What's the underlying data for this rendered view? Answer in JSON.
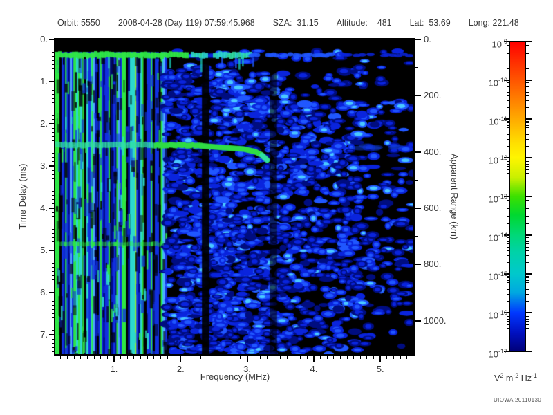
{
  "header": {
    "segments": [
      "Orbit: 5550",
      "2008-04-28 (Day 119) 07:59:45.968",
      "SZA:  31.15",
      "Altitude:    481",
      "Lat:  53.69",
      "Long: 221.48"
    ]
  },
  "watermark": "UIOWA 20110130",
  "chart_data": {
    "type": "heatmap",
    "subtype": "radar-sounder-ionogram-spectrogram",
    "x_axis": {
      "label": "Frequency (MHz)",
      "range_mhz": [
        0.117,
        5.5
      ],
      "major_ticks": [
        {
          "value": 1,
          "label": "1."
        },
        {
          "value": 2,
          "label": "2."
        },
        {
          "value": 3,
          "label": "3."
        },
        {
          "value": 4,
          "label": "4."
        },
        {
          "value": 5,
          "label": "5."
        }
      ],
      "minor_tick_step": 0.1
    },
    "y_axis": {
      "label": "Time Delay (ms)",
      "range_ms": [
        0,
        7.46
      ],
      "major_ticks": [
        {
          "value": 0,
          "label": "0."
        },
        {
          "value": 1,
          "label": "1."
        },
        {
          "value": 2,
          "label": "2."
        },
        {
          "value": 3,
          "label": "3."
        },
        {
          "value": 4,
          "label": "4."
        },
        {
          "value": 5,
          "label": "5."
        },
        {
          "value": 6,
          "label": "6."
        },
        {
          "value": 7,
          "label": "7."
        }
      ],
      "minor_tick_step": 0.1
    },
    "y2_axis": {
      "label": "Apparent Range (km)",
      "range_km": [
        0,
        1119
      ],
      "major_ticks": [
        {
          "value": 0,
          "label": "0."
        },
        {
          "value": 200,
          "label": "200."
        },
        {
          "value": 400,
          "label": "400."
        },
        {
          "value": 600,
          "label": "600."
        },
        {
          "value": 800,
          "label": "800."
        },
        {
          "value": 1000,
          "label": "1000."
        }
      ],
      "minor_tick_step": 100
    },
    "colorbar": {
      "unit": [
        [
          "V",
          "2"
        ],
        [
          "m",
          "-2"
        ],
        [
          "Hz",
          "-1"
        ]
      ],
      "decade_exponents": [
        -9,
        -10,
        -11,
        -12,
        -13,
        -14,
        -15,
        -16,
        -17
      ],
      "top_value": "1e-9",
      "bottom_value": "1e-17",
      "gradient": [
        [
          0,
          "#ff0000"
        ],
        [
          6,
          "#ff2a00"
        ],
        [
          12.5,
          "#ff5500"
        ],
        [
          25,
          "#ffaa00"
        ],
        [
          33,
          "#ffe000"
        ],
        [
          37.5,
          "#fff500"
        ],
        [
          44,
          "#c8f000"
        ],
        [
          50,
          "#3ce000"
        ],
        [
          56,
          "#00d830"
        ],
        [
          62.5,
          "#00d878"
        ],
        [
          68,
          "#00d2a8"
        ],
        [
          75,
          "#00c8cc"
        ],
        [
          81,
          "#00a8e0"
        ],
        [
          87.5,
          "#0038ff"
        ],
        [
          94,
          "#0010c0"
        ],
        [
          100,
          "#000078"
        ]
      ]
    },
    "features": {
      "background_color": "#000000",
      "palette": {
        "bright_green": "#2ee646",
        "yellow_green": "#8cf23c",
        "cyan": "#2cd8ce",
        "light_blue": "#4fa8ff",
        "mid_blue": "#1130e0",
        "dark_blue": "#000d90",
        "speckle_dark": "#000d80",
        "speckle_mid": "#0a24dd",
        "speckle_light": "#2057ff",
        "speckle_cyan": "#49c8ff",
        "trace_green": "#2fdd44",
        "trace_cyan_green": "#30dfa2"
      },
      "top_black_band_ms": [
        0,
        0.3
      ],
      "noise_band": {
        "delay_ms": 0.37,
        "green_until_mhz": 2.1,
        "cyan_until_mhz": 3.05,
        "blue_until_mhz": 4.3
      },
      "harmonic_stripes": {
        "freq_range_mhz": [
          0.117,
          1.78
        ],
        "start_delay_ms": 0.3,
        "bright_line_spacing_mhz": 0.13
      },
      "echo_band": {
        "delay_ms": 2.5,
        "freq_range_mhz": [
          0.117,
          2.3
        ]
      },
      "ionosphere_trace": {
        "points_mhz_ms": [
          [
            2.3,
            2.52
          ],
          [
            2.62,
            2.56
          ],
          [
            2.95,
            2.6
          ],
          [
            3.12,
            2.66
          ],
          [
            3.22,
            2.74
          ],
          [
            3.3,
            2.86
          ]
        ]
      },
      "trace_echo_smear": {
        "freq_range_mhz": [
          4.35,
          5.25
        ],
        "delay_ms": 2.55
      },
      "faint_band": {
        "delay_ms": 4.85,
        "freq_range_mhz": [
          0.117,
          1.72
        ]
      },
      "gap_columns": [
        {
          "freq_range_mhz": [
            2.32,
            2.43
          ],
          "alpha": 0.92
        },
        {
          "freq_range_mhz": [
            3.34,
            3.45
          ],
          "alpha": 0.6
        }
      ],
      "speckle": {
        "seed": 20110130,
        "count": 2600
      }
    }
  }
}
